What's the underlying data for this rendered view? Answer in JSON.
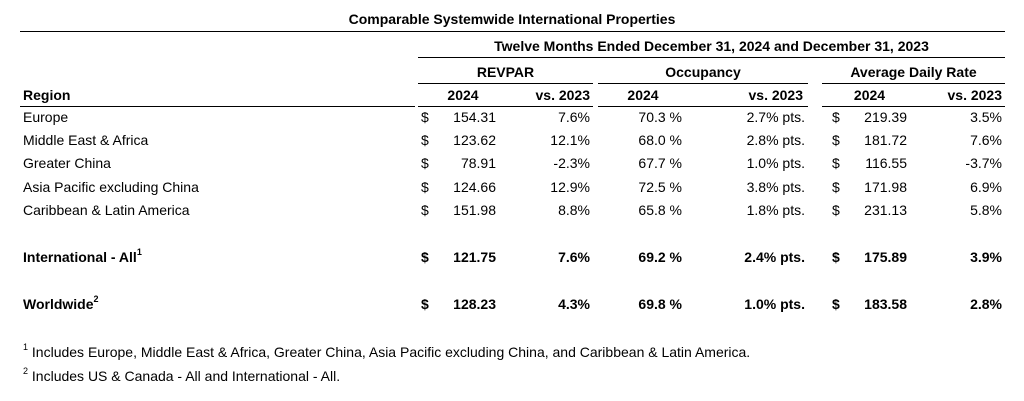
{
  "title": "Comparable Systemwide International Properties",
  "period": "Twelve Months Ended December 31, 2024 and December 31, 2023",
  "groups": [
    "REVPAR",
    "Occupancy",
    "Average Daily Rate"
  ],
  "region_header": "Region",
  "col_2024": "2024",
  "col_vs": "vs. 2023",
  "currency": "$",
  "rows": [
    {
      "region": "Europe",
      "revpar": "154.31",
      "revpar_chg": "7.6%",
      "occ": "70.3 %",
      "occ_chg": "2.7% pts.",
      "adr": "219.39",
      "adr_chg": "3.5%"
    },
    {
      "region": "Middle East & Africa",
      "revpar": "123.62",
      "revpar_chg": "12.1%",
      "occ": "68.0 %",
      "occ_chg": "2.8% pts.",
      "adr": "181.72",
      "adr_chg": "7.6%"
    },
    {
      "region": "Greater China",
      "revpar": "78.91",
      "revpar_chg": "-2.3%",
      "occ": "67.7 %",
      "occ_chg": "1.0% pts.",
      "adr": "116.55",
      "adr_chg": "-3.7%"
    },
    {
      "region": "Asia Pacific excluding China",
      "revpar": "124.66",
      "revpar_chg": "12.9%",
      "occ": "72.5 %",
      "occ_chg": "3.8% pts.",
      "adr": "171.98",
      "adr_chg": "6.9%"
    },
    {
      "region": "Caribbean & Latin America",
      "revpar": "151.98",
      "revpar_chg": "8.8%",
      "occ": "65.8 %",
      "occ_chg": "1.8% pts.",
      "adr": "231.13",
      "adr_chg": "5.8%"
    }
  ],
  "totals": [
    {
      "region": "International - All",
      "sup": "1",
      "revpar": "121.75",
      "revpar_chg": "7.6%",
      "occ": "69.2 %",
      "occ_chg": "2.4% pts.",
      "adr": "175.89",
      "adr_chg": "3.9%"
    },
    {
      "region": "Worldwide",
      "sup": "2",
      "revpar": "128.23",
      "revpar_chg": "4.3%",
      "occ": "69.8 %",
      "occ_chg": "1.0% pts.",
      "adr": "183.58",
      "adr_chg": "2.8%"
    }
  ],
  "footnotes": [
    {
      "mark": "1",
      "text": "Includes Europe, Middle East & Africa, Greater China, Asia Pacific excluding China, and Caribbean & Latin America."
    },
    {
      "mark": "2",
      "text": "Includes US & Canada - All and International - All."
    }
  ]
}
